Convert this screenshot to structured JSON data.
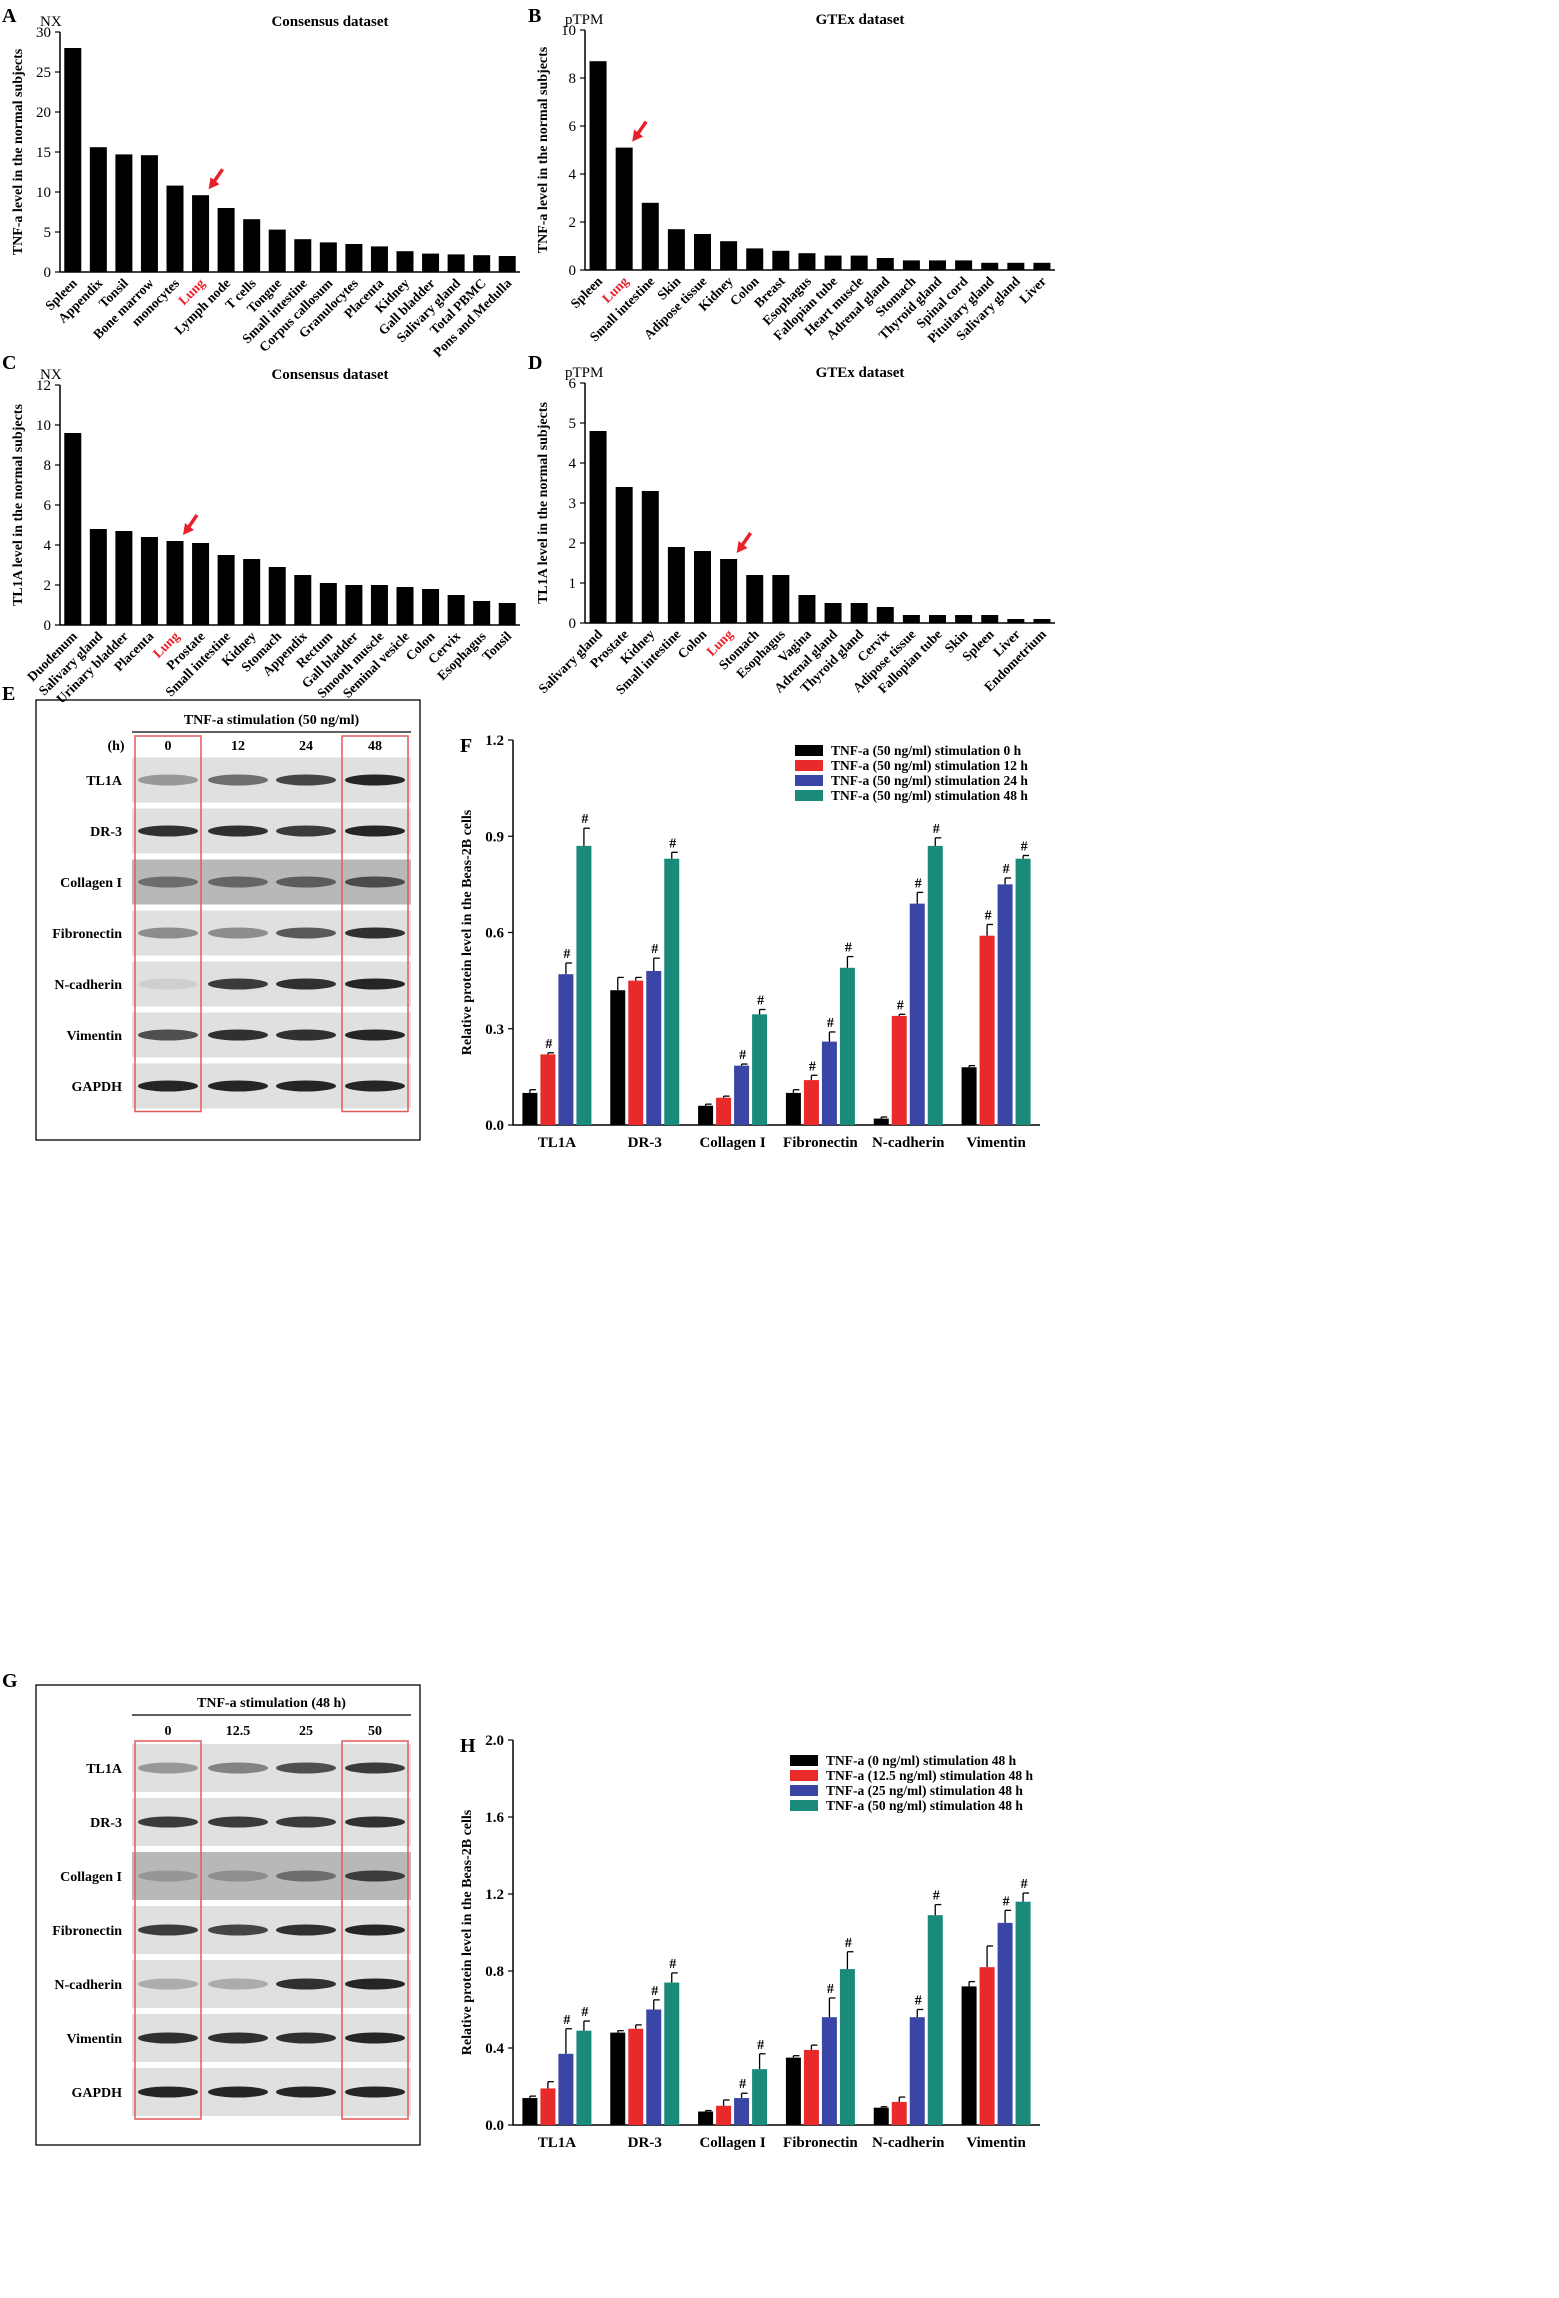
{
  "colors": {
    "bar": "#000000",
    "highlight": "#e8202a",
    "s0": "#000000",
    "s1": "#e82a2a",
    "s2": "#3a46a6",
    "s3": "#1a8a7a",
    "box": "#e05a5a"
  },
  "chart_data": [
    {
      "id": "A",
      "panel_label": "A",
      "type": "bar",
      "title": "Consensus dataset",
      "unit_label": "NX",
      "ylabel": "TNF-a level in the normal subjects",
      "ylim": [
        0,
        30
      ],
      "yticks": [
        0,
        5,
        10,
        15,
        20,
        25,
        30
      ],
      "categories": [
        "Spleen",
        "Appendix",
        "Tonsil",
        "Bone marrow",
        "monocytes",
        "Lung",
        "Lymph node",
        "T cells",
        "Tongue",
        "Small intestine",
        "Corpus callosum",
        "Granulocytes",
        "Placenta",
        "Kidney",
        "Gall bladder",
        "Salivary gland",
        "Total PBMC",
        "Pons and Medulla"
      ],
      "values": [
        28,
        15.6,
        14.7,
        14.6,
        10.8,
        9.6,
        8,
        6.6,
        5.3,
        4.1,
        3.7,
        3.5,
        3.2,
        2.6,
        2.3,
        2.2,
        2.1,
        2.0
      ],
      "highlight": "Lung"
    },
    {
      "id": "B",
      "panel_label": "B",
      "type": "bar",
      "title": "GTEx dataset",
      "unit_label": "pTPM",
      "ylabel": "TNF-a level in the  normal subjects",
      "ylim": [
        0,
        10
      ],
      "yticks": [
        0,
        2,
        4,
        6,
        8,
        10
      ],
      "categories": [
        "Spleen",
        "Lung",
        "Small intestine",
        "Skin",
        "Adipose tissue",
        "Kidney",
        "Colon",
        "Breast",
        "Esophagus",
        "Fallopian tube",
        "Heart muscle",
        "Adrenal gland",
        "Stomach",
        "Thyroid gland",
        "Spinal cord",
        "Pituitary gland",
        "Salivary gland",
        "Liver"
      ],
      "values": [
        8.7,
        5.1,
        2.8,
        1.7,
        1.5,
        1.2,
        0.9,
        0.8,
        0.7,
        0.6,
        0.6,
        0.5,
        0.4,
        0.4,
        0.4,
        0.3,
        0.3,
        0.3
      ],
      "highlight": "Lung"
    },
    {
      "id": "C",
      "panel_label": "C",
      "type": "bar",
      "title": "Consensus dataset",
      "unit_label": "NX",
      "ylabel": "TL1A level in the normal subjects",
      "ylim": [
        0,
        12
      ],
      "yticks": [
        0,
        2,
        4,
        6,
        8,
        10,
        12
      ],
      "categories": [
        "Duodenum",
        "Salivary gland",
        "Urinary bladder",
        "Placenta",
        "Lung",
        "Prostate",
        "Small intestine",
        "Kidney",
        "Stomach",
        "Appendix",
        "Rectum",
        "Gall bladder",
        "Smooth muscle",
        "Seminal vesicle",
        "Colon",
        "Cervix",
        "Esophagus",
        "Tonsil"
      ],
      "values": [
        9.6,
        4.8,
        4.7,
        4.4,
        4.2,
        4.1,
        3.5,
        3.3,
        2.9,
        2.5,
        2.1,
        2.0,
        2.0,
        1.9,
        1.8,
        1.5,
        1.2,
        1.1
      ],
      "highlight": "Lung"
    },
    {
      "id": "D",
      "panel_label": "D",
      "type": "bar",
      "title": "GTEx dataset",
      "unit_label": "pTPM",
      "ylabel": "TL1A level in the normal subjects",
      "ylim": [
        0,
        6
      ],
      "yticks": [
        0,
        1,
        2,
        3,
        4,
        5,
        6
      ],
      "categories": [
        "Salivary gland",
        "Prostate",
        "Kidney",
        "Small intestine",
        "Colon",
        "Lung",
        "Stomach",
        "Esophagus",
        "Vagina",
        "Adrenal gland",
        "Thyroid gland",
        "Cervix",
        "Adipose tissue",
        "Fallopian tube",
        "Skin",
        "Spleen",
        "Liver",
        "Endometrium"
      ],
      "values": [
        4.8,
        3.4,
        3.3,
        1.9,
        1.8,
        1.6,
        1.2,
        1.2,
        0.7,
        0.5,
        0.5,
        0.4,
        0.2,
        0.2,
        0.2,
        0.2,
        0.1,
        0.1
      ],
      "highlight": "Lung"
    },
    {
      "id": "F",
      "panel_label": "F",
      "type": "bar",
      "ylabel": "Relative protein level in the Beas-2B cells",
      "ylim": [
        0,
        1.2
      ],
      "yticks": [
        "0.0",
        "0.3",
        "0.6",
        "0.9",
        "1.2"
      ],
      "categories": [
        "TL1A",
        "DR-3",
        "Collagen I",
        "Fibronectin",
        "N-cadherin",
        "Vimentin"
      ],
      "significance_mark": "#",
      "series": [
        {
          "name": "TNF-a (50 ng/ml) stimulation 0 h",
          "values": [
            0.1,
            0.42,
            0.06,
            0.1,
            0.02,
            0.18
          ],
          "errors": [
            0.01,
            0.04,
            0.005,
            0.01,
            0.005,
            0.005
          ],
          "sig": [
            false,
            false,
            false,
            false,
            false,
            false
          ]
        },
        {
          "name": "TNF-a (50 ng/ml) stimulation 12 h",
          "values": [
            0.22,
            0.45,
            0.085,
            0.14,
            0.34,
            0.59
          ],
          "errors": [
            0.005,
            0.01,
            0.005,
            0.015,
            0.005,
            0.035
          ],
          "sig": [
            true,
            false,
            false,
            true,
            true,
            true
          ]
        },
        {
          "name": "TNF-a (50 ng/ml) stimulation 24 h",
          "values": [
            0.47,
            0.48,
            0.185,
            0.26,
            0.69,
            0.75
          ],
          "errors": [
            0.035,
            0.04,
            0.005,
            0.03,
            0.035,
            0.02
          ],
          "sig": [
            true,
            true,
            true,
            true,
            true,
            true
          ]
        },
        {
          "name": "TNF-a (50 ng/ml) stimulation 48 h",
          "values": [
            0.87,
            0.83,
            0.345,
            0.49,
            0.87,
            0.83
          ],
          "errors": [
            0.055,
            0.02,
            0.015,
            0.035,
            0.025,
            0.01
          ],
          "sig": [
            true,
            true,
            true,
            true,
            true,
            true
          ]
        }
      ]
    },
    {
      "id": "H",
      "panel_label": "H",
      "type": "bar",
      "ylabel": "Relative protein level in the Beas-2B cells",
      "ylim": [
        0,
        2.0
      ],
      "yticks": [
        "0.0",
        "0.4",
        "0.8",
        "1.2",
        "1.6",
        "2.0"
      ],
      "categories": [
        "TL1A",
        "DR-3",
        "Collagen I",
        "Fibronectin",
        "N-cadherin",
        "Vimentin"
      ],
      "significance_mark": "#",
      "series": [
        {
          "name": "TNF-a (0 ng/ml) stimulation 48 h",
          "values": [
            0.14,
            0.48,
            0.07,
            0.35,
            0.09,
            0.72
          ],
          "errors": [
            0.01,
            0.01,
            0.005,
            0.01,
            0.005,
            0.025
          ],
          "sig": [
            false,
            false,
            false,
            false,
            false,
            false
          ]
        },
        {
          "name": "TNF-a (12.5 ng/ml) stimulation 48 h",
          "values": [
            0.19,
            0.5,
            0.1,
            0.39,
            0.12,
            0.82
          ],
          "errors": [
            0.035,
            0.02,
            0.03,
            0.025,
            0.025,
            0.11
          ],
          "sig": [
            false,
            false,
            false,
            false,
            false,
            false
          ]
        },
        {
          "name": "TNF-a (25 ng/ml) stimulation 48 h",
          "values": [
            0.37,
            0.6,
            0.14,
            0.56,
            0.56,
            1.05
          ],
          "errors": [
            0.13,
            0.05,
            0.025,
            0.1,
            0.04,
            0.065
          ],
          "sig": [
            true,
            true,
            true,
            true,
            true,
            true
          ]
        },
        {
          "name": "TNF-a (50 ng/ml) stimulation 48 h",
          "values": [
            0.49,
            0.74,
            0.29,
            0.81,
            1.09,
            1.16
          ],
          "errors": [
            0.05,
            0.05,
            0.08,
            0.09,
            0.055,
            0.045
          ],
          "sig": [
            true,
            true,
            true,
            true,
            true,
            true
          ]
        }
      ]
    }
  ],
  "blots": [
    {
      "id": "E",
      "panel_label": "E",
      "header": "TNF-a stimulation (50 ng/ml)",
      "unit": "(h)",
      "lanes": [
        "0",
        "12",
        "24",
        "48"
      ],
      "rows": [
        "TL1A",
        "DR-3",
        "Collagen I",
        "Fibronectin",
        "N-cadherin",
        "Vimentin",
        "GAPDH"
      ],
      "intensity": [
        [
          0.35,
          0.55,
          0.75,
          0.9
        ],
        [
          0.85,
          0.85,
          0.8,
          0.9
        ],
        [
          0.45,
          0.5,
          0.55,
          0.65
        ],
        [
          0.4,
          0.4,
          0.65,
          0.85
        ],
        [
          0.08,
          0.8,
          0.85,
          0.9
        ],
        [
          0.7,
          0.85,
          0.85,
          0.9
        ],
        [
          0.9,
          0.9,
          0.9,
          0.9
        ]
      ],
      "highlight_lanes": [
        0,
        3
      ]
    },
    {
      "id": "G",
      "panel_label": "G",
      "header": "TNF-a stimulation (48 h)",
      "unit": "",
      "lanes": [
        "0",
        "12.5",
        "25",
        "50"
      ],
      "rows": [
        "TL1A",
        "DR-3",
        "Collagen I",
        "Fibronectin",
        "N-cadherin",
        "Vimentin",
        "GAPDH"
      ],
      "intensity": [
        [
          0.35,
          0.45,
          0.7,
          0.8
        ],
        [
          0.8,
          0.8,
          0.8,
          0.85
        ],
        [
          0.2,
          0.25,
          0.45,
          0.75
        ],
        [
          0.8,
          0.75,
          0.85,
          0.9
        ],
        [
          0.25,
          0.25,
          0.85,
          0.9
        ],
        [
          0.85,
          0.85,
          0.85,
          0.9
        ],
        [
          0.9,
          0.9,
          0.9,
          0.9
        ]
      ],
      "highlight_lanes": [
        0,
        3
      ]
    }
  ]
}
